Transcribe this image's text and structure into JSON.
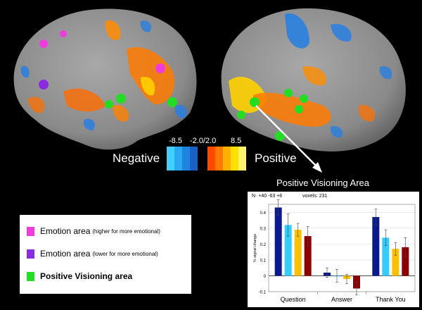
{
  "scale": {
    "negative_label": "Negative",
    "positive_label": "Positive",
    "min_label": "-8.5",
    "mid_label": "-2.0/2.0",
    "max_label": "8.5",
    "negative_colors": [
      "#3fd0ff",
      "#2aa8f0",
      "#1f83df",
      "#1a5fc4"
    ],
    "positive_colors": [
      "#ff4a00",
      "#ff7a00",
      "#ffb000",
      "#ffe000",
      "#fff36a"
    ]
  },
  "callout": {
    "title": "Positive Visioning Area"
  },
  "legend": {
    "items": [
      {
        "main": "Emotion area",
        "sub": "(higher for more emotional)",
        "color": "#f03cdc",
        "bold": false
      },
      {
        "main": "Emotion area",
        "sub": "(lower for more emotional)",
        "color": "#8a2be2",
        "bold": false
      },
      {
        "main": "Positive Visioning area",
        "sub": "",
        "color": "#22dd22",
        "bold": true
      }
    ]
  },
  "chart_panel": {
    "coord_label": "N· +40 -63 +6",
    "voxel_label": "voxels: 231"
  },
  "chart_data": {
    "type": "bar",
    "categories": [
      "Question",
      "Answer",
      "Thank You"
    ],
    "ylabel": "% signal change",
    "ylim": [
      -0.1,
      0.45
    ],
    "yticks": [
      "0.4",
      "0.3",
      "0.2",
      "0.1",
      "0",
      "-0.1"
    ],
    "ytick_values": [
      0.4,
      0.3,
      0.2,
      0.1,
      0,
      -0.1
    ],
    "series_colors": [
      "#0a1a8c",
      "#33ccff",
      "#ffc000",
      "#8b0000"
    ],
    "series": [
      {
        "values": [
          0.43,
          0.02,
          0.37
        ],
        "errors": [
          0.05,
          0.03,
          0.05
        ]
      },
      {
        "values": [
          0.32,
          0.0,
          0.24
        ],
        "errors": [
          0.07,
          0.04,
          0.05
        ]
      },
      {
        "values": [
          0.29,
          -0.02,
          0.17
        ],
        "errors": [
          0.04,
          0.03,
          0.04
        ]
      },
      {
        "values": [
          0.25,
          -0.08,
          0.18
        ],
        "errors": [
          0.06,
          0.04,
          0.06
        ]
      }
    ]
  }
}
